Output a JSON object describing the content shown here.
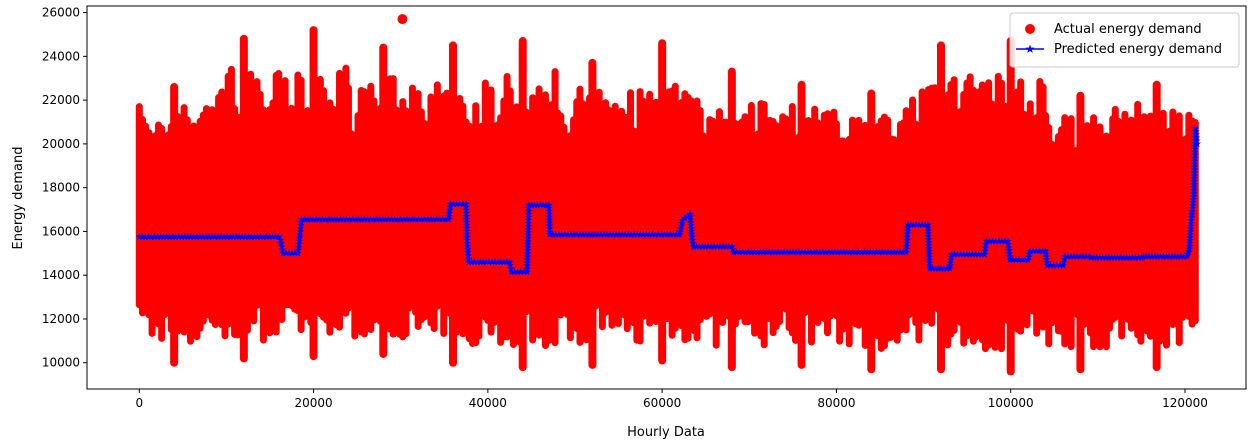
{
  "chart_data": {
    "type": "scatter",
    "xlabel": "Hourly Data",
    "ylabel": "Energy demand",
    "xlim": [
      -6000,
      127000
    ],
    "ylim": [
      8800,
      26300
    ],
    "xticks": [
      0,
      20000,
      40000,
      60000,
      80000,
      100000,
      120000
    ],
    "yticks": [
      10000,
      12000,
      14000,
      16000,
      18000,
      20000,
      22000,
      24000,
      26000
    ],
    "grid": false,
    "legend_position": "top-right",
    "series": [
      {
        "name": "Actual energy demand",
        "kind": "scatter",
        "color": "#ff0000",
        "bands": [
          {
            "x_start": 0,
            "x_end": 8000,
            "min": 10000,
            "max": 22600
          },
          {
            "x_start": 8000,
            "x_end": 16000,
            "min": 10200,
            "max": 24800
          },
          {
            "x_start": 16000,
            "x_end": 24000,
            "min": 10300,
            "max": 25200
          },
          {
            "x_start": 24000,
            "x_end": 32000,
            "min": 10400,
            "max": 24400
          },
          {
            "x_start": 32000,
            "x_end": 40000,
            "min": 10000,
            "max": 24500
          },
          {
            "x_start": 40000,
            "x_end": 48000,
            "min": 9800,
            "max": 24700
          },
          {
            "x_start": 48000,
            "x_end": 56000,
            "min": 9900,
            "max": 23700
          },
          {
            "x_start": 56000,
            "x_end": 64000,
            "min": 10100,
            "max": 24600
          },
          {
            "x_start": 64000,
            "x_end": 72000,
            "min": 9800,
            "max": 23300
          },
          {
            "x_start": 72000,
            "x_end": 80000,
            "min": 9900,
            "max": 22700
          },
          {
            "x_start": 80000,
            "x_end": 88000,
            "min": 9700,
            "max": 22300
          },
          {
            "x_start": 88000,
            "x_end": 96000,
            "min": 9700,
            "max": 24500
          },
          {
            "x_start": 96000,
            "x_end": 104000,
            "min": 9600,
            "max": 24700
          },
          {
            "x_start": 104000,
            "x_end": 112000,
            "min": 9700,
            "max": 22200
          },
          {
            "x_start": 112000,
            "x_end": 121500,
            "min": 9800,
            "max": 22700
          }
        ],
        "outlier": {
          "x": 30200,
          "y": 25700
        }
      },
      {
        "name": "Predicted energy demand",
        "kind": "line",
        "color": "#0000ff",
        "marker": "star",
        "points": [
          [
            0,
            15750
          ],
          [
            16000,
            15750
          ],
          [
            16200,
            15600
          ],
          [
            16500,
            15000
          ],
          [
            18200,
            15000
          ],
          [
            18400,
            15700
          ],
          [
            18600,
            16550
          ],
          [
            35500,
            16550
          ],
          [
            35700,
            17250
          ],
          [
            37500,
            17250
          ],
          [
            37600,
            15600
          ],
          [
            37800,
            14600
          ],
          [
            42500,
            14600
          ],
          [
            42700,
            14150
          ],
          [
            44500,
            14150
          ],
          [
            44700,
            17200
          ],
          [
            47000,
            17200
          ],
          [
            47100,
            15850
          ],
          [
            62000,
            15850
          ],
          [
            62300,
            16500
          ],
          [
            63200,
            16800
          ],
          [
            63400,
            15750
          ],
          [
            63600,
            15300
          ],
          [
            68000,
            15300
          ],
          [
            68200,
            15050
          ],
          [
            88000,
            15050
          ],
          [
            88200,
            16300
          ],
          [
            90500,
            16300
          ],
          [
            90700,
            14300
          ],
          [
            93000,
            14300
          ],
          [
            93200,
            14950
          ],
          [
            97000,
            14950
          ],
          [
            97200,
            15550
          ],
          [
            99700,
            15550
          ],
          [
            99900,
            14700
          ],
          [
            102000,
            14700
          ],
          [
            102200,
            15100
          ],
          [
            104000,
            15100
          ],
          [
            104200,
            14450
          ],
          [
            106000,
            14450
          ],
          [
            106200,
            14850
          ],
          [
            109000,
            14850
          ],
          [
            109200,
            14800
          ],
          [
            115000,
            14800
          ],
          [
            115200,
            14850
          ],
          [
            120200,
            14850
          ],
          [
            120500,
            15200
          ],
          [
            120700,
            16500
          ],
          [
            121000,
            17600
          ],
          [
            121200,
            20700
          ],
          [
            121400,
            20000
          ]
        ]
      }
    ]
  }
}
